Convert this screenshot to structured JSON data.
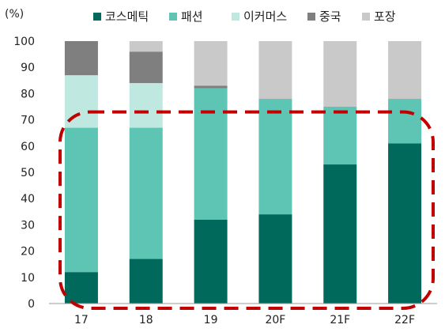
{
  "chart_data": {
    "type": "bar",
    "stacked": true,
    "unit_label": "(%)",
    "categories": [
      "17",
      "18",
      "19",
      "20F",
      "21F",
      "22F"
    ],
    "ylim": [
      0,
      100
    ],
    "yticks": [
      0,
      10,
      20,
      30,
      40,
      50,
      60,
      70,
      80,
      90,
      100
    ],
    "grid": false,
    "legend_position": "top",
    "series": [
      {
        "name": "코스메틱",
        "color": "#00695c",
        "values": [
          12,
          17,
          32,
          34,
          53,
          61
        ]
      },
      {
        "name": "패션",
        "color": "#5ec4b4",
        "values": [
          55,
          50,
          50,
          44,
          22,
          17
        ]
      },
      {
        "name": "이커머스",
        "color": "#bfe8e1",
        "values": [
          20,
          17,
          0,
          0,
          0,
          0
        ]
      },
      {
        "name": "중국",
        "color": "#7f7f7f",
        "values": [
          13,
          12,
          1,
          0,
          0,
          0
        ]
      },
      {
        "name": "포장",
        "color": "#c9c9c9",
        "values": [
          0,
          4,
          17,
          22,
          25,
          22
        ]
      }
    ],
    "annotations": [
      {
        "type": "dashed-rounded-box",
        "color": "#c00000",
        "spans_categories": [
          "17",
          "22F"
        ],
        "y_range": [
          0,
          73
        ]
      }
    ]
  }
}
